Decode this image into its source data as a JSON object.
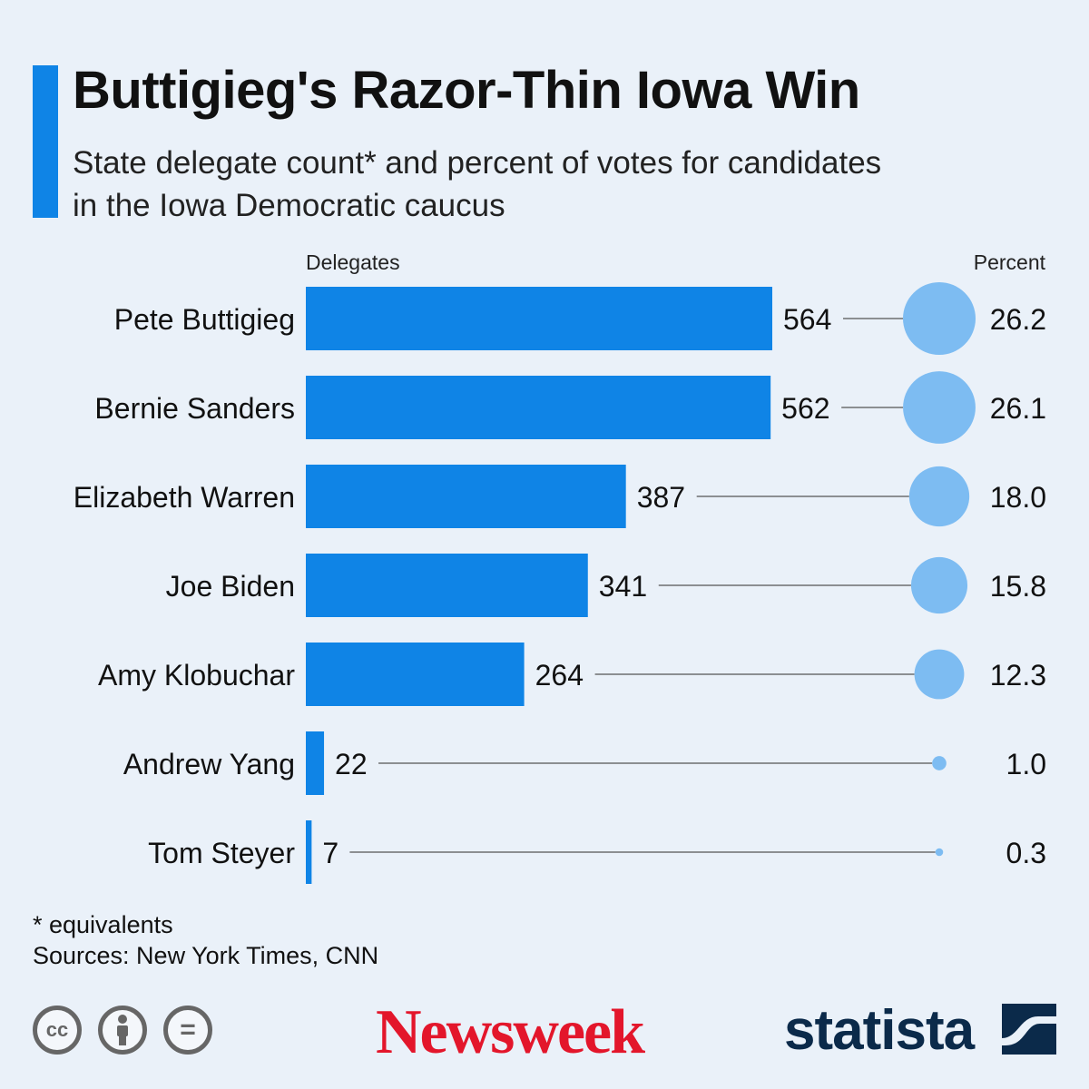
{
  "header": {
    "title": "Buttigieg's Razor-Thin Iowa Win",
    "subtitle": "State delegate count* and percent of votes for candidates in the Iowa Democratic caucus"
  },
  "chart_data": {
    "type": "bar",
    "title": "Buttigieg's Razor-Thin Iowa Win",
    "column_labels": {
      "delegates": "Delegates",
      "percent": "Percent"
    },
    "categories": [
      "Pete Buttigieg",
      "Bernie Sanders",
      "Elizabeth Warren",
      "Joe Biden",
      "Amy Klobuchar",
      "Andrew Yang",
      "Tom Steyer"
    ],
    "series": [
      {
        "name": "Delegates",
        "values": [
          564,
          562,
          387,
          341,
          264,
          22,
          7
        ]
      },
      {
        "name": "Percent",
        "values": [
          "26.2",
          "26.1",
          "18.0",
          "15.8",
          "12.3",
          "1.0",
          "0.3"
        ]
      }
    ],
    "xlim": [
      0,
      564
    ],
    "grid": false,
    "colors": {
      "bar": "#0f84e6",
      "bubble": "#7dbcf2",
      "leader": "#555555"
    }
  },
  "footnote": {
    "note": "* equivalents",
    "sources": "Sources: New York Times, CNN"
  },
  "footer": {
    "icons": [
      "cc-icon",
      "attribution-icon",
      "no-derivatives-icon"
    ],
    "cc_text": "cc",
    "nd_text": "=",
    "newsweek": "Newsweek",
    "statista": "statista"
  }
}
